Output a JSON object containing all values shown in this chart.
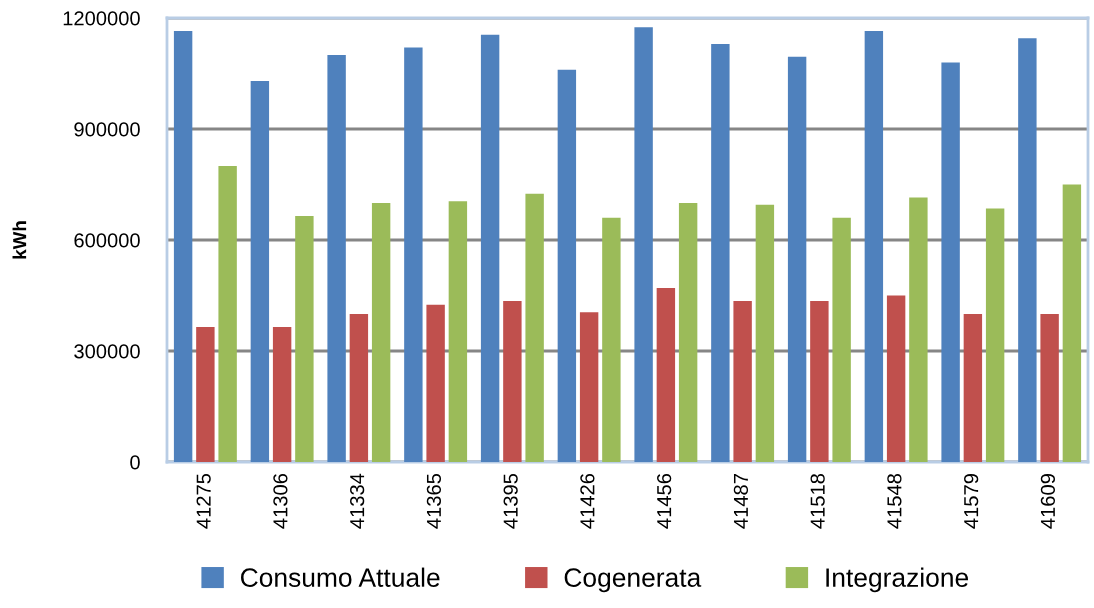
{
  "chart_data": {
    "type": "bar",
    "ylabel": "kWh",
    "categories": [
      "41275",
      "41306",
      "41334",
      "41365",
      "41395",
      "41426",
      "41456",
      "41487",
      "41518",
      "41548",
      "41579",
      "41609"
    ],
    "series": [
      {
        "name": "Consumo Attuale",
        "color": "#4f81bd",
        "values": [
          1165000,
          1030000,
          1100000,
          1120000,
          1155000,
          1060000,
          1175000,
          1130000,
          1095000,
          1165000,
          1080000,
          1145000
        ]
      },
      {
        "name": "Cogenerata",
        "color": "#c0504d",
        "values": [
          365000,
          365000,
          400000,
          425000,
          435000,
          405000,
          470000,
          435000,
          435000,
          450000,
          400000,
          400000
        ]
      },
      {
        "name": "Integrazione",
        "color": "#9bbb59",
        "values": [
          800000,
          665000,
          700000,
          705000,
          725000,
          660000,
          700000,
          695000,
          660000,
          715000,
          685000,
          750000
        ]
      }
    ],
    "ylim": [
      0,
      1200000
    ],
    "yticks": [
      0,
      300000,
      600000,
      900000,
      1200000
    ],
    "grid": "y",
    "legend": "bottom"
  }
}
